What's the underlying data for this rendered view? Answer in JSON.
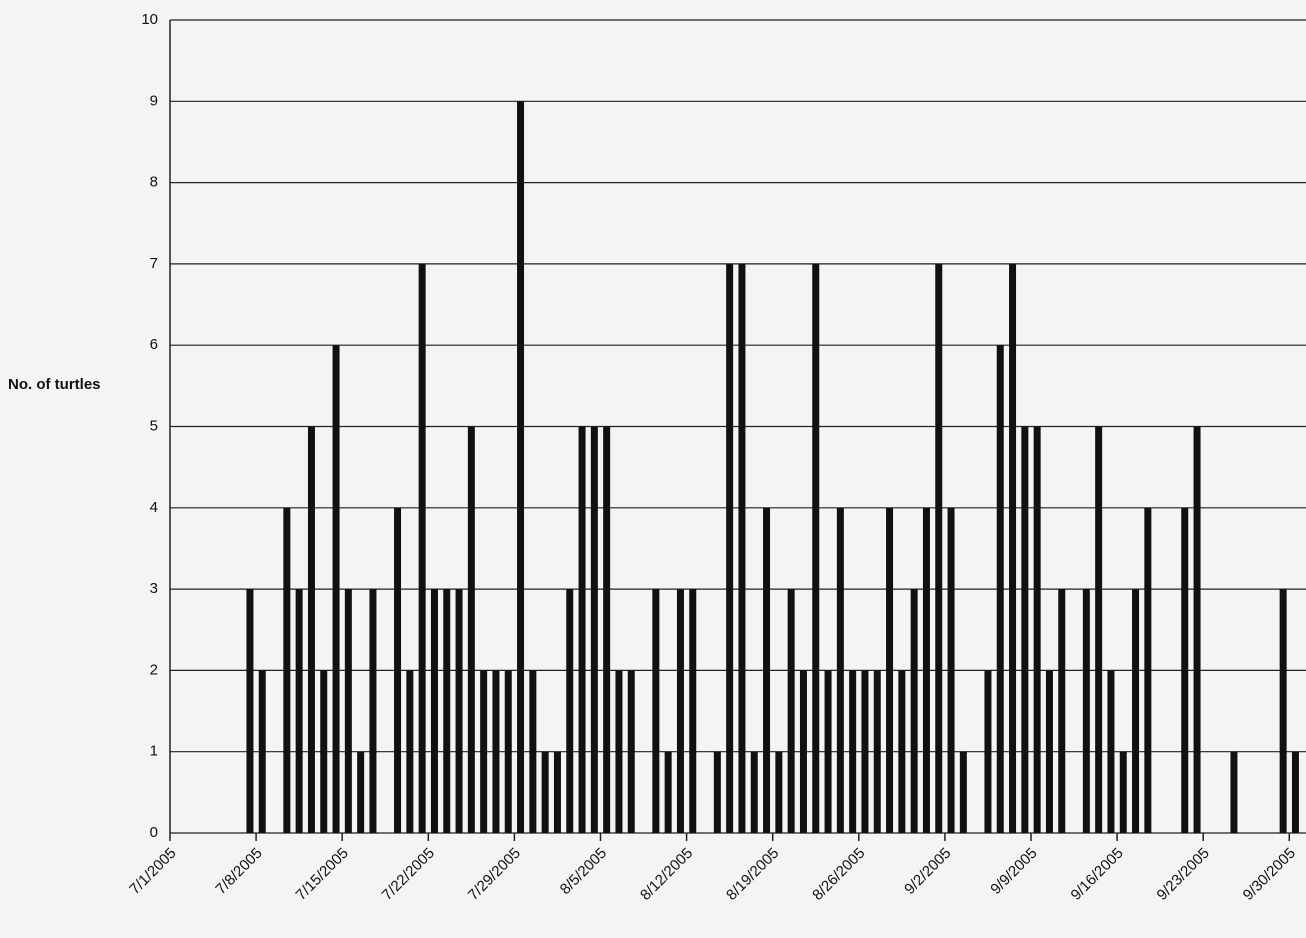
{
  "chart_data": {
    "type": "bar",
    "y_label": "No. of turtles",
    "x": [
      "7/1/2005",
      "7/2/2005",
      "7/3/2005",
      "7/4/2005",
      "7/5/2005",
      "7/6/2005",
      "7/7/2005",
      "7/8/2005",
      "7/9/2005",
      "7/10/2005",
      "7/11/2005",
      "7/12/2005",
      "7/13/2005",
      "7/14/2005",
      "7/15/2005",
      "7/16/2005",
      "7/17/2005",
      "7/18/2005",
      "7/19/2005",
      "7/20/2005",
      "7/21/2005",
      "7/22/2005",
      "7/23/2005",
      "7/24/2005",
      "7/25/2005",
      "7/26/2005",
      "7/27/2005",
      "7/28/2005",
      "7/29/2005",
      "7/30/2005",
      "7/31/2005",
      "8/1/2005",
      "8/2/2005",
      "8/3/2005",
      "8/4/2005",
      "8/5/2005",
      "8/6/2005",
      "8/7/2005",
      "8/8/2005",
      "8/9/2005",
      "8/10/2005",
      "8/11/2005",
      "8/12/2005",
      "8/13/2005",
      "8/14/2005",
      "8/15/2005",
      "8/16/2005",
      "8/17/2005",
      "8/18/2005",
      "8/19/2005",
      "8/20/2005",
      "8/21/2005",
      "8/22/2005",
      "8/23/2005",
      "8/24/2005",
      "8/25/2005",
      "8/26/2005",
      "8/27/2005",
      "8/28/2005",
      "8/29/2005",
      "8/30/2005",
      "8/31/2005",
      "9/1/2005",
      "9/2/2005",
      "9/3/2005",
      "9/4/2005",
      "9/5/2005",
      "9/6/2005",
      "9/7/2005",
      "9/8/2005",
      "9/9/2005",
      "9/10/2005",
      "9/11/2005",
      "9/12/2005",
      "9/13/2005",
      "9/14/2005",
      "9/15/2005",
      "9/16/2005",
      "9/17/2005",
      "9/18/2005",
      "9/19/2005",
      "9/20/2005",
      "9/21/2005",
      "9/22/2005",
      "9/23/2005",
      "9/24/2005",
      "9/25/2005",
      "9/26/2005",
      "9/27/2005",
      "9/28/2005",
      "9/29/2005",
      "9/30/2005"
    ],
    "values": [
      0,
      0,
      0,
      0,
      0,
      0,
      3,
      2,
      0,
      4,
      3,
      5,
      2,
      6,
      3,
      1,
      3,
      0,
      4,
      2,
      7,
      3,
      3,
      3,
      5,
      2,
      2,
      2,
      9,
      2,
      1,
      1,
      3,
      5,
      5,
      5,
      2,
      2,
      0,
      3,
      1,
      3,
      3,
      0,
      1,
      7,
      7,
      1,
      4,
      1,
      3,
      2,
      7,
      2,
      4,
      2,
      2,
      2,
      4,
      2,
      3,
      4,
      7,
      4,
      1,
      0,
      2,
      6,
      7,
      5,
      5,
      2,
      3,
      0,
      3,
      5,
      2,
      1,
      3,
      4,
      0,
      0,
      4,
      5,
      0,
      0,
      1,
      0,
      0,
      0,
      3,
      1
    ],
    "color": "#111111",
    "xticks": [
      "7/1/2005",
      "7/8/2005",
      "7/15/2005",
      "7/22/2005",
      "7/29/2005",
      "8/5/2005",
      "8/12/2005",
      "8/19/2005",
      "8/26/2005",
      "9/2/2005",
      "9/9/2005",
      "9/16/2005",
      "9/23/2005",
      "9/30/2005"
    ],
    "ylim": [
      0,
      10
    ],
    "yticks": [
      0,
      1,
      2,
      3,
      4,
      5,
      6,
      7,
      8,
      9,
      10
    ],
    "grid": true
  }
}
